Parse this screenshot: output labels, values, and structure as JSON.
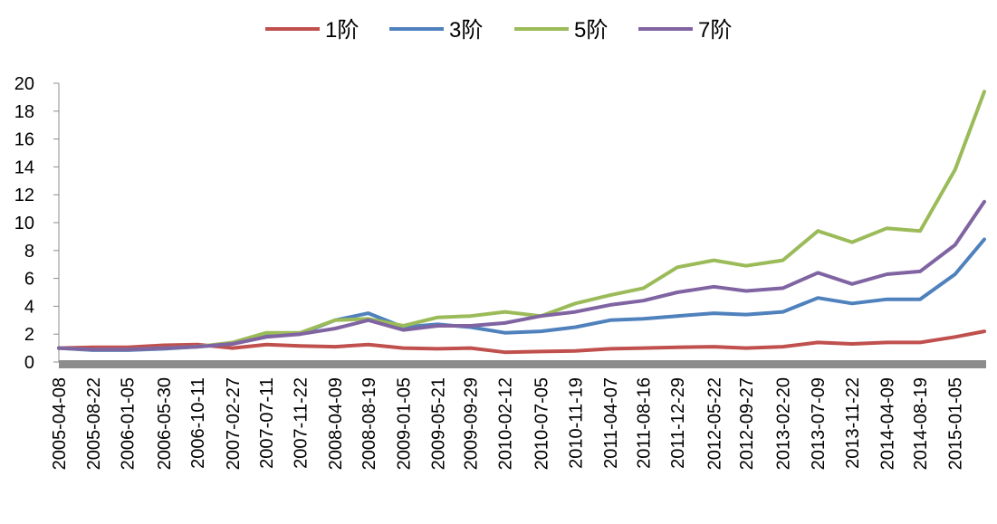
{
  "chart_data": {
    "type": "line",
    "title": "",
    "xlabel": "",
    "ylabel": "",
    "ylim": [
      0,
      20
    ],
    "yticks": [
      "0",
      "2",
      "4",
      "6",
      "8",
      "10",
      "12",
      "14",
      "16",
      "18",
      "20"
    ],
    "grid": false,
    "legend_position": "top",
    "x_tick_labels": [
      "2005-04-08",
      "2005-08-22",
      "2006-01-05",
      "2006-05-30",
      "2006-10-11",
      "2007-02-27",
      "2007-07-11",
      "2007-11-22",
      "2008-04-09",
      "2008-08-19",
      "2009-01-05",
      "2009-05-21",
      "2009-09-29",
      "2010-02-12",
      "2010-07-05",
      "2010-11-19",
      "2011-04-07",
      "2011-08-16",
      "2011-12-29",
      "2012-05-22",
      "2012-09-27",
      "2013-02-20",
      "2013-07-09",
      "2013-11-22",
      "2014-04-09",
      "2014-08-19",
      "2015-01-05"
    ],
    "x_end": "2015-05",
    "series": [
      {
        "name": "1阶",
        "color": "#c0504d",
        "x": [
          "2005-04-08",
          "2005-08-22",
          "2006-01-05",
          "2006-05-30",
          "2006-10-11",
          "2007-02-27",
          "2007-07-11",
          "2007-11-22",
          "2008-04-09",
          "2008-08-19",
          "2009-01-05",
          "2009-05-21",
          "2009-09-29",
          "2010-02-12",
          "2010-07-05",
          "2010-11-19",
          "2011-04-07",
          "2011-08-16",
          "2011-12-29",
          "2012-05-22",
          "2012-09-27",
          "2013-02-20",
          "2013-07-09",
          "2013-11-22",
          "2014-04-09",
          "2014-08-19",
          "2015-01-05",
          "2015-05"
        ],
        "values": [
          1.0,
          1.05,
          1.05,
          1.2,
          1.25,
          1.0,
          1.25,
          1.15,
          1.1,
          1.25,
          1.0,
          0.95,
          1.0,
          0.7,
          0.75,
          0.8,
          0.95,
          1.0,
          1.05,
          1.1,
          1.0,
          1.1,
          1.4,
          1.3,
          1.4,
          1.4,
          1.8,
          2.2
        ]
      },
      {
        "name": "3阶",
        "color": "#4f81bd",
        "x": [
          "2005-04-08",
          "2005-08-22",
          "2006-01-05",
          "2006-05-30",
          "2006-10-11",
          "2007-02-27",
          "2007-07-11",
          "2007-11-22",
          "2008-04-09",
          "2008-08-19",
          "2009-01-05",
          "2009-05-21",
          "2009-09-29",
          "2010-02-12",
          "2010-07-05",
          "2010-11-19",
          "2011-04-07",
          "2011-08-16",
          "2011-12-29",
          "2012-05-22",
          "2012-09-27",
          "2013-02-20",
          "2013-07-09",
          "2013-11-22",
          "2014-04-09",
          "2014-08-19",
          "2015-01-05",
          "2015-05"
        ],
        "values": [
          1.0,
          0.85,
          0.85,
          0.95,
          1.1,
          1.3,
          1.9,
          2.0,
          3.0,
          3.5,
          2.5,
          2.7,
          2.5,
          2.1,
          2.2,
          2.5,
          3.0,
          3.1,
          3.3,
          3.5,
          3.4,
          3.6,
          4.6,
          4.2,
          4.5,
          4.5,
          6.3,
          8.8
        ]
      },
      {
        "name": "5阶",
        "color": "#9bbb59",
        "x": [
          "2005-04-08",
          "2005-08-22",
          "2006-01-05",
          "2006-05-30",
          "2006-10-11",
          "2007-02-27",
          "2007-07-11",
          "2007-11-22",
          "2008-04-09",
          "2008-08-19",
          "2009-01-05",
          "2009-05-21",
          "2009-09-29",
          "2010-02-12",
          "2010-07-05",
          "2010-11-19",
          "2011-04-07",
          "2011-08-16",
          "2011-12-29",
          "2012-05-22",
          "2012-09-27",
          "2013-02-20",
          "2013-07-09",
          "2013-11-22",
          "2014-04-09",
          "2014-08-19",
          "2015-01-05",
          "2015-05"
        ],
        "values": [
          1.0,
          0.9,
          0.9,
          1.0,
          1.1,
          1.4,
          2.1,
          2.1,
          3.0,
          3.1,
          2.6,
          3.2,
          3.3,
          3.6,
          3.3,
          4.2,
          4.8,
          5.3,
          6.8,
          7.3,
          6.9,
          7.3,
          9.4,
          8.6,
          9.6,
          9.4,
          13.8,
          19.4
        ]
      },
      {
        "name": "7阶",
        "color": "#8064a2",
        "x": [
          "2005-04-08",
          "2005-08-22",
          "2006-01-05",
          "2006-05-30",
          "2006-10-11",
          "2007-02-27",
          "2007-07-11",
          "2007-11-22",
          "2008-04-09",
          "2008-08-19",
          "2009-01-05",
          "2009-05-21",
          "2009-09-29",
          "2010-02-12",
          "2010-07-05",
          "2010-11-19",
          "2011-04-07",
          "2011-08-16",
          "2011-12-29",
          "2012-05-22",
          "2012-09-27",
          "2013-02-20",
          "2013-07-09",
          "2013-11-22",
          "2014-04-09",
          "2014-08-19",
          "2015-01-05",
          "2015-05"
        ],
        "values": [
          1.0,
          0.9,
          0.9,
          1.0,
          1.1,
          1.3,
          1.8,
          2.0,
          2.4,
          3.0,
          2.3,
          2.6,
          2.6,
          2.8,
          3.3,
          3.6,
          4.1,
          4.4,
          5.0,
          5.4,
          5.1,
          5.3,
          6.4,
          5.6,
          6.3,
          6.5,
          8.4,
          11.5
        ]
      }
    ]
  }
}
